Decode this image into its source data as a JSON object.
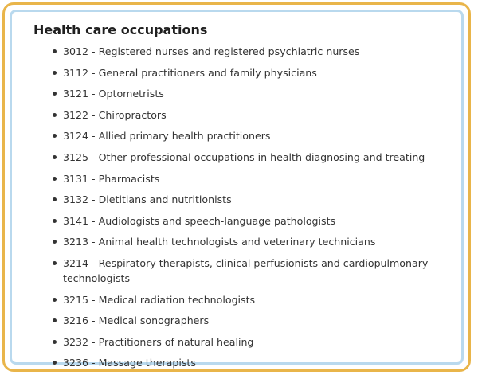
{
  "section": {
    "title": "Health care occupations",
    "items": [
      "3012 - Registered nurses and registered psychiatric nurses",
      "3112 - General practitioners and family physicians",
      "3121 - Optometrists",
      "3122 - Chiropractors",
      "3124 - Allied primary health practitioners",
      "3125 - Other professional occupations in health diagnosing and treating",
      "3131 - Pharmacists",
      "3132 - Dietitians and nutritionists",
      "3141 - Audiologists and speech-language pathologists",
      "3213 - Animal health technologists and veterinary technicians",
      "3214 - Respiratory therapists, clinical perfusionists and cardiopulmonary technologists",
      "3215 - Medical radiation technologists",
      "3216 - Medical sonographers",
      "3232 - Practitioners of natural healing",
      "3236 - Massage therapists"
    ]
  },
  "colors": {
    "outer_border": "#e9b54a",
    "inner_border": "#b9d9ee",
    "text": "#333333",
    "heading": "#1f1f1f"
  }
}
